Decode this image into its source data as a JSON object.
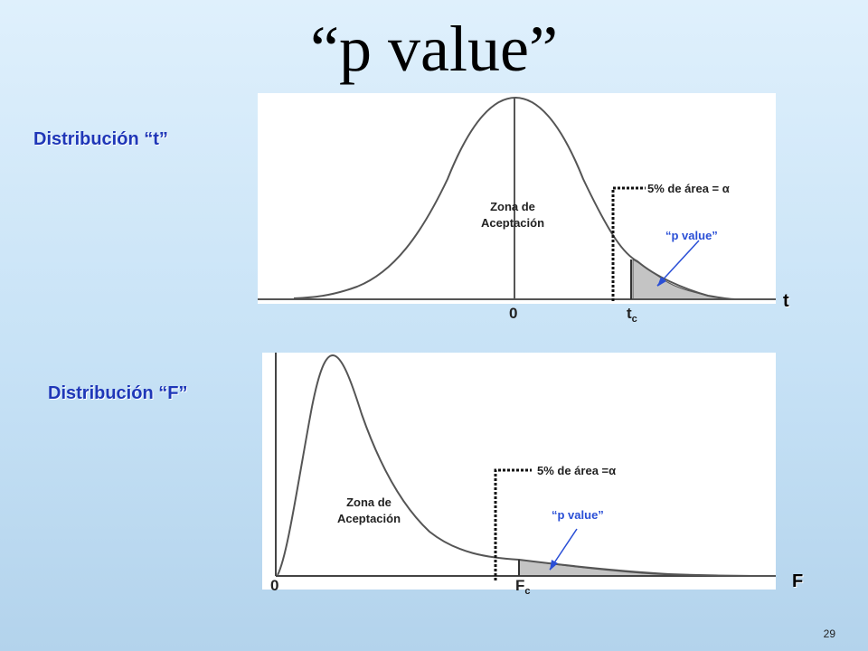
{
  "slide": {
    "title": "“p  value”",
    "page_number": "29"
  },
  "t_panel": {
    "label": "Distribución “t”",
    "zone_label_line1": "Zona de",
    "zone_label_line2": "Aceptación",
    "area_label": "5% de área = α",
    "pvalue_label": "“p value”",
    "tick_zero": "0",
    "critical_main": "t",
    "critical_sub": "c",
    "axis_letter": "t"
  },
  "f_panel": {
    "label": "Distribución “F”",
    "zone_label_line1": "Zona de",
    "zone_label_line2": "Aceptación",
    "area_label": "5% de área =α",
    "pvalue_label": "“p value”",
    "tick_zero": "0",
    "critical_main": "F",
    "critical_sub": "c",
    "axis_letter": "F"
  },
  "colors": {
    "label_blue": "#1f37b8",
    "arrow_blue": "#2a4fd6",
    "shade_gray": "#c4c4c4"
  }
}
